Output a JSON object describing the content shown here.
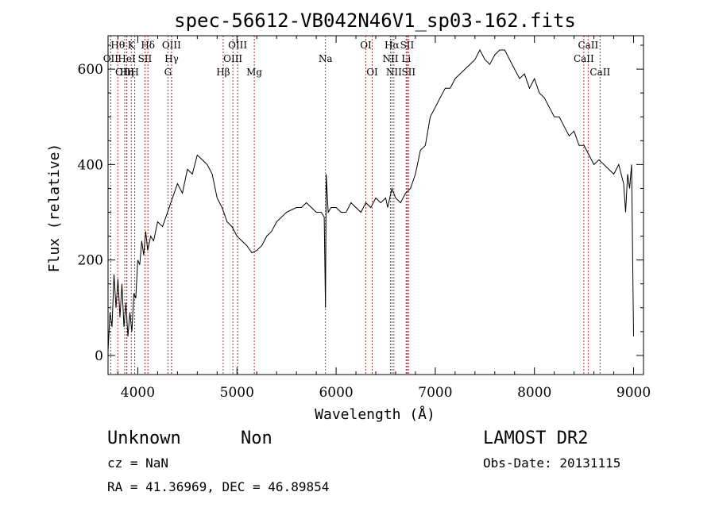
{
  "chart_data": {
    "type": "line",
    "title": "spec-56612-VB042N46V1_sp03-162.fits",
    "xlabel": "Wavelength (Å)",
    "ylabel": "Flux (relative)",
    "xlim": [
      3700,
      9100
    ],
    "ylim": [
      -40,
      670
    ],
    "xticks": [
      4000,
      5000,
      6000,
      7000,
      8000,
      9000
    ],
    "yticks": [
      0,
      200,
      400,
      600
    ],
    "grid": false,
    "series": [
      {
        "x": [
          3700,
          3720,
          3740,
          3760,
          3780,
          3800,
          3820,
          3840,
          3860,
          3880,
          3900,
          3920,
          3940,
          3960,
          3980,
          4000,
          4020,
          4040,
          4060,
          4080,
          4100,
          4130,
          4160,
          4200,
          4250,
          4300,
          4350,
          4400,
          4450,
          4500,
          4550,
          4600,
          4650,
          4700,
          4750,
          4800,
          4850,
          4900,
          4950,
          5000,
          5050,
          5100,
          5150,
          5200,
          5250,
          5300,
          5350,
          5400,
          5450,
          5500,
          5550,
          5600,
          5650,
          5700,
          5750,
          5800,
          5850,
          5880,
          5893,
          5900,
          5920,
          5950,
          6000,
          6050,
          6100,
          6150,
          6200,
          6250,
          6300,
          6350,
          6400,
          6450,
          6500,
          6520,
          6563,
          6600,
          6650,
          6700,
          6750,
          6800,
          6850,
          6900,
          6950,
          7000,
          7050,
          7100,
          7150,
          7200,
          7250,
          7300,
          7350,
          7400,
          7450,
          7500,
          7550,
          7600,
          7650,
          7700,
          7750,
          7800,
          7850,
          7900,
          7950,
          8000,
          8050,
          8100,
          8150,
          8200,
          8250,
          8300,
          8350,
          8400,
          8450,
          8500,
          8550,
          8600,
          8650,
          8700,
          8750,
          8800,
          8850,
          8900,
          8920,
          8940,
          8960,
          8980,
          9000
        ],
        "y": [
          10,
          90,
          60,
          170,
          100,
          160,
          80,
          150,
          60,
          110,
          40,
          90,
          50,
          130,
          120,
          200,
          190,
          240,
          210,
          260,
          220,
          250,
          240,
          280,
          270,
          300,
          330,
          360,
          340,
          390,
          380,
          420,
          410,
          400,
          380,
          330,
          310,
          280,
          270,
          250,
          240,
          230,
          215,
          220,
          230,
          250,
          260,
          280,
          290,
          300,
          305,
          310,
          310,
          320,
          310,
          300,
          300,
          290,
          100,
          380,
          300,
          310,
          310,
          300,
          300,
          320,
          310,
          300,
          320,
          310,
          330,
          320,
          330,
          310,
          350,
          330,
          320,
          340,
          350,
          380,
          430,
          440,
          500,
          520,
          540,
          560,
          560,
          580,
          590,
          600,
          610,
          620,
          640,
          620,
          610,
          630,
          640,
          640,
          620,
          600,
          580,
          590,
          560,
          580,
          550,
          540,
          520,
          500,
          500,
          480,
          460,
          470,
          440,
          440,
          420,
          400,
          410,
          400,
          390,
          380,
          400,
          360,
          300,
          380,
          350,
          400,
          40
        ]
      }
    ],
    "line_markers": [
      {
        "label": "OII",
        "x": 3727,
        "row": 1
      },
      {
        "label": "Hθ",
        "x": 3798,
        "row": 0
      },
      {
        "label": "OIII",
        "x": 3868,
        "row": 2
      },
      {
        "label": "HeI",
        "x": 3889,
        "row": 1
      },
      {
        "label": "Hη",
        "x": 3889,
        "row": 2
      },
      {
        "label": "K",
        "x": 3934,
        "row": 0
      },
      {
        "label": "H",
        "x": 3969,
        "row": 2
      },
      {
        "label": "SII",
        "x": 4072,
        "row": 1
      },
      {
        "label": "Hδ",
        "x": 4102,
        "row": 0
      },
      {
        "label": "G",
        "x": 4304,
        "row": 2
      },
      {
        "label": "OIII",
        "x": 4340,
        "row": 0
      },
      {
        "label": "Hγ",
        "x": 4341,
        "row": 1
      },
      {
        "label": "Hβ",
        "x": 4861,
        "row": 2
      },
      {
        "label": "OIII",
        "x": 4959,
        "row": 1
      },
      {
        "label": "OIII",
        "x": 5007,
        "row": 0
      },
      {
        "label": "Mg",
        "x": 5175,
        "row": 2
      },
      {
        "label": "Na",
        "x": 5893,
        "row": 1
      },
      {
        "label": "OI",
        "x": 6300,
        "row": 0
      },
      {
        "label": "OI",
        "x": 6364,
        "row": 2
      },
      {
        "label": "NII",
        "x": 6548,
        "row": 1
      },
      {
        "label": "Hα",
        "x": 6563,
        "row": 0
      },
      {
        "label": "NII",
        "x": 6583,
        "row": 2
      },
      {
        "label": "Li",
        "x": 6707,
        "row": 1
      },
      {
        "label": "SII",
        "x": 6716,
        "row": 0
      },
      {
        "label": "SII",
        "x": 6731,
        "row": 2
      },
      {
        "label": "CaII",
        "x": 8498,
        "row": 1
      },
      {
        "label": "CaII",
        "x": 8542,
        "row": 0
      },
      {
        "label": "CaII",
        "x": 8662,
        "row": 2
      }
    ]
  },
  "info": {
    "object_type": "Unknown",
    "subclass": "Non",
    "survey": "LAMOST DR2",
    "redshift": "cz = NaN",
    "obs_date": "Obs-Date: 20131115",
    "coords": "RA =  41.36969, DEC =  46.89854"
  },
  "colors": {
    "spectrum": "#000000",
    "markers": "#b03030",
    "frame": "#000000"
  }
}
